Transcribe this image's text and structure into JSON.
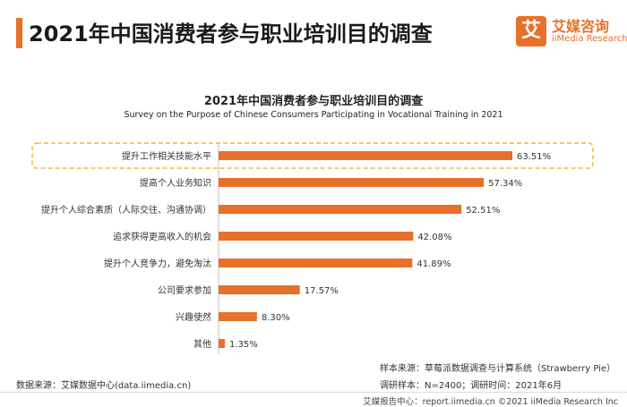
{
  "header": {
    "title": "2021年中国消费者参与职业培训目的调查",
    "logo_mark": "艾",
    "logo_cn": "艾媒咨询",
    "logo_en": "iiMedia Research"
  },
  "colors": {
    "accent": "#e8702a",
    "highlight_border": "#f2b83a",
    "text": "#333333"
  },
  "chart_data": {
    "type": "bar",
    "orientation": "horizontal",
    "title": "2021年中国消费者参与职业培训目的调查",
    "subtitle": "Survey on the Purpose of Chinese Consumers Participating in Vocational Training in 2021",
    "categories": [
      "提升工作相关技能水平",
      "提高个人业务知识",
      "提升个人综合素质（人际交往、沟通协调）",
      "追求获得更高收入的机会",
      "提升个人竞争力，避免淘汰",
      "公司要求参加",
      "兴趣使然",
      "其他"
    ],
    "values": [
      63.51,
      57.34,
      52.51,
      42.08,
      41.89,
      17.57,
      8.3,
      1.35
    ],
    "value_labels": [
      "63.51%",
      "57.34%",
      "52.51%",
      "42.08%",
      "41.89%",
      "17.57%",
      "8.30%",
      "1.35%"
    ],
    "unit": "%",
    "xlim": [
      0,
      63.51
    ],
    "highlighted_index": 0,
    "grid": false
  },
  "notes": {
    "sample_source": "样本来源：草莓派数据调查与计算系统（Strawberry Pie）",
    "sample_info": "调研样本：N=2400；调研时间：2021年6月",
    "data_source": "数据来源：艾媒数据中心(data.iimedia.cn)"
  },
  "footer": {
    "text": "艾媒报告中心：report.iimedia.cn   ©2021  iiMedia Research  Inc"
  }
}
